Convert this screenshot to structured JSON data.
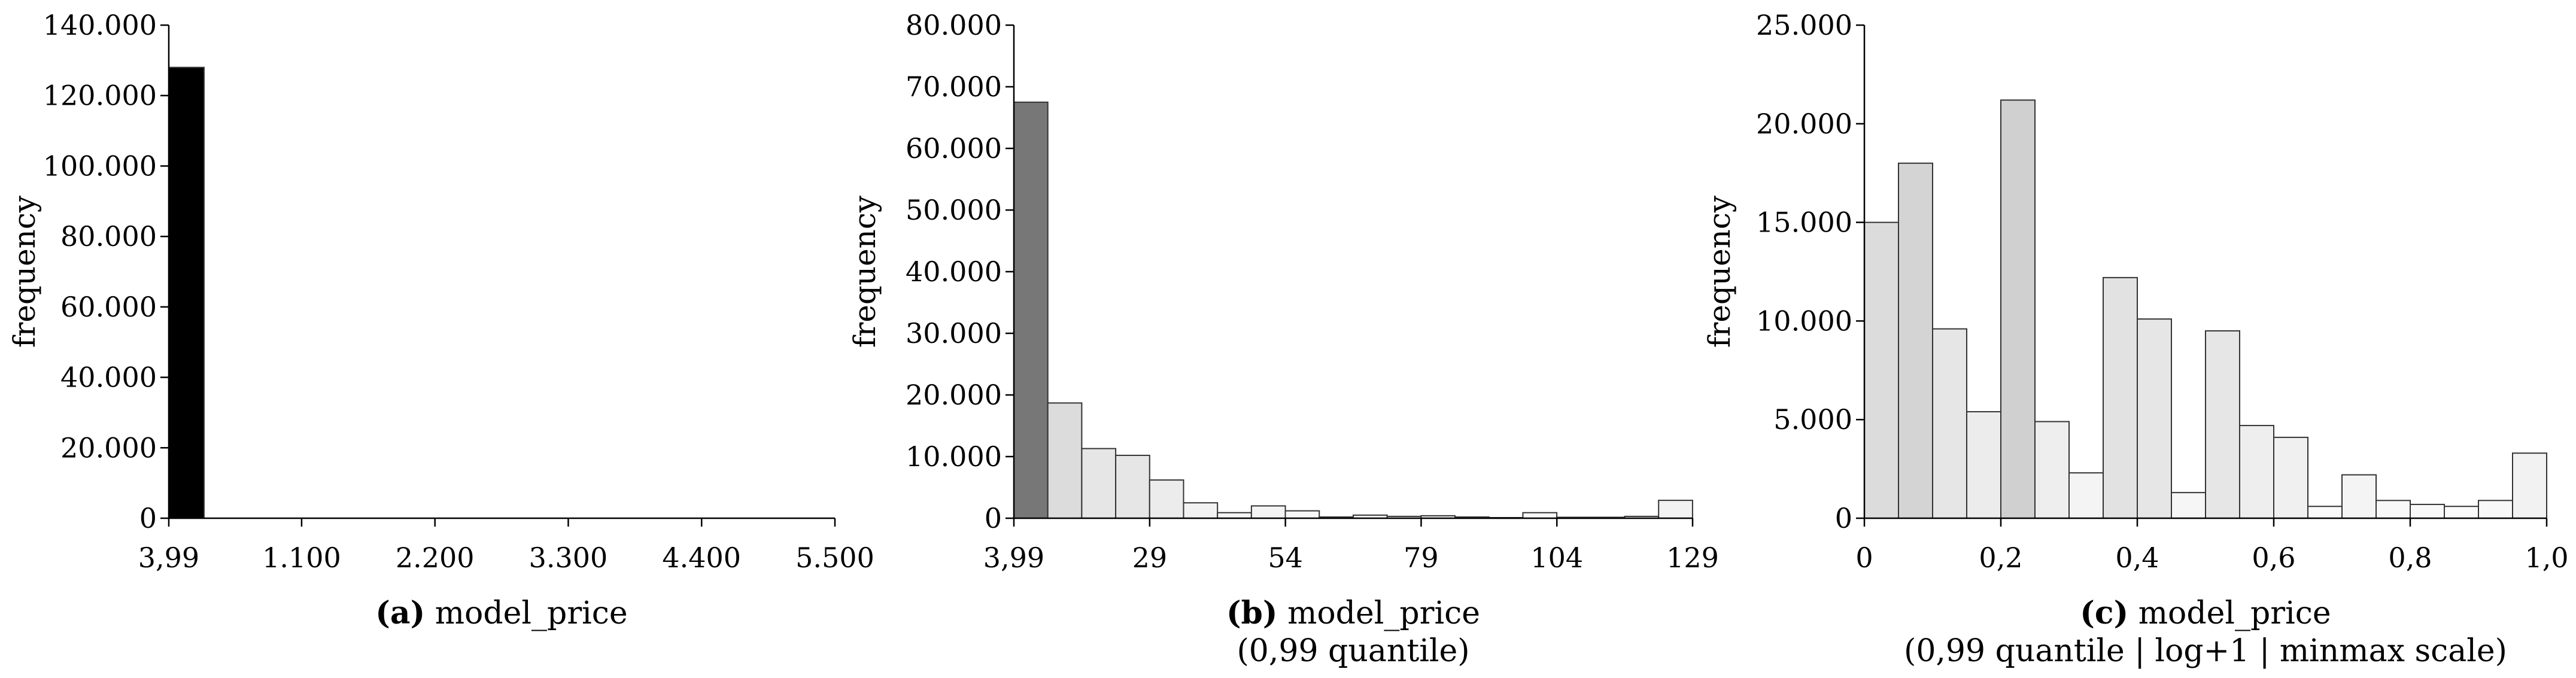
{
  "chart_data": [
    {
      "id": "a",
      "type": "bar",
      "ylabel": "frequency",
      "ylim": [
        0,
        140000
      ],
      "yticks": [
        0,
        20000,
        40000,
        60000,
        80000,
        100000,
        120000,
        140000
      ],
      "ytick_labels": [
        "0",
        "20.000",
        "40.000",
        "60.000",
        "80.000",
        "100.000",
        "120.000",
        "140.000"
      ],
      "xlim": [
        3.99,
        5500
      ],
      "xticks": [
        3.99,
        1100,
        2200,
        3300,
        4400,
        5500
      ],
      "xtick_labels": [
        "3,99",
        "1.100",
        "2.200",
        "3.300",
        "4.400",
        "5.500"
      ],
      "bin_edges": [
        3.99,
        295
      ],
      "values": [
        128000
      ],
      "colors": [
        "#000000"
      ],
      "caption_tag": "(a)",
      "caption": "model_price",
      "caption_sub": ""
    },
    {
      "id": "b",
      "type": "bar",
      "ylabel": "frequency",
      "ylim": [
        0,
        80000
      ],
      "yticks": [
        0,
        10000,
        20000,
        30000,
        40000,
        50000,
        60000,
        70000,
        80000
      ],
      "ytick_labels": [
        "0",
        "10.000",
        "20.000",
        "30.000",
        "40.000",
        "50.000",
        "60.000",
        "70.000",
        "80.000"
      ],
      "xlim": [
        3.99,
        129
      ],
      "xticks": [
        3.99,
        29,
        54,
        79,
        104,
        129
      ],
      "xtick_labels": [
        "3,99",
        "29",
        "54",
        "79",
        "104",
        "129"
      ],
      "bin_edges": [
        3.99,
        10.24,
        16.49,
        22.74,
        28.99,
        35.24,
        41.49,
        47.74,
        53.99,
        60.24,
        66.49,
        72.74,
        78.99,
        85.24,
        91.49,
        97.74,
        103.99,
        110.24,
        116.49,
        122.74,
        128.99
      ],
      "values": [
        67500,
        18700,
        11300,
        10200,
        6200,
        2500,
        900,
        2000,
        1200,
        200,
        500,
        300,
        400,
        200,
        100,
        900,
        150,
        150,
        300,
        2900
      ],
      "colors": [
        "#777777",
        "#dcdcdc",
        "#e6e6e6",
        "#e6e6e6",
        "#ececec",
        "#f2f2f2",
        "#f6f6f6",
        "#f4f4f4",
        "#f6f6f6",
        "#fafafa",
        "#f8f8f8",
        "#fafafa",
        "#fafafa",
        "#fafafa",
        "#fafafa",
        "#f8f8f8",
        "#fafafa",
        "#fafafa",
        "#fafafa",
        "#f2f2f2"
      ],
      "caption_tag": "(b)",
      "caption": "model_price",
      "caption_sub": "(0,99 quantile)"
    },
    {
      "id": "c",
      "type": "bar",
      "ylabel": "frequency",
      "ylim": [
        0,
        25000
      ],
      "yticks": [
        0,
        5000,
        10000,
        15000,
        20000,
        25000
      ],
      "ytick_labels": [
        "0",
        "5.000",
        "10.000",
        "15.000",
        "20.000",
        "25.000"
      ],
      "xlim": [
        0,
        1
      ],
      "xticks": [
        0,
        0.2,
        0.4,
        0.6,
        0.8,
        1.0
      ],
      "xtick_labels": [
        "0",
        "0,2",
        "0,4",
        "0,6",
        "0,8",
        "1,0"
      ],
      "bin_edges": [
        0,
        0.05,
        0.1,
        0.15,
        0.2,
        0.25,
        0.3,
        0.35,
        0.4,
        0.45,
        0.5,
        0.55,
        0.6,
        0.65,
        0.7,
        0.75,
        0.8,
        0.85,
        0.9,
        0.95,
        1.0
      ],
      "values": [
        15000,
        18000,
        9600,
        5400,
        21200,
        4900,
        2300,
        12200,
        10100,
        1300,
        9500,
        4700,
        4100,
        600,
        2200,
        900,
        700,
        600,
        900,
        3300
      ],
      "colors": [
        "#dcdcdc",
        "#d4d4d4",
        "#e6e6e6",
        "#ececec",
        "#d0d0d0",
        "#eeeeee",
        "#f4f4f4",
        "#e2e2e2",
        "#e6e6e6",
        "#f6f6f6",
        "#e6e6e6",
        "#eeeeee",
        "#f0f0f0",
        "#fafafa",
        "#f4f4f4",
        "#f8f8f8",
        "#f8f8f8",
        "#fafafa",
        "#f8f8f8",
        "#f2f2f2"
      ],
      "caption_tag": "(c)",
      "caption": "model_price",
      "caption_sub": "(0,99 quantile | log+1 | minmax scale)"
    }
  ]
}
